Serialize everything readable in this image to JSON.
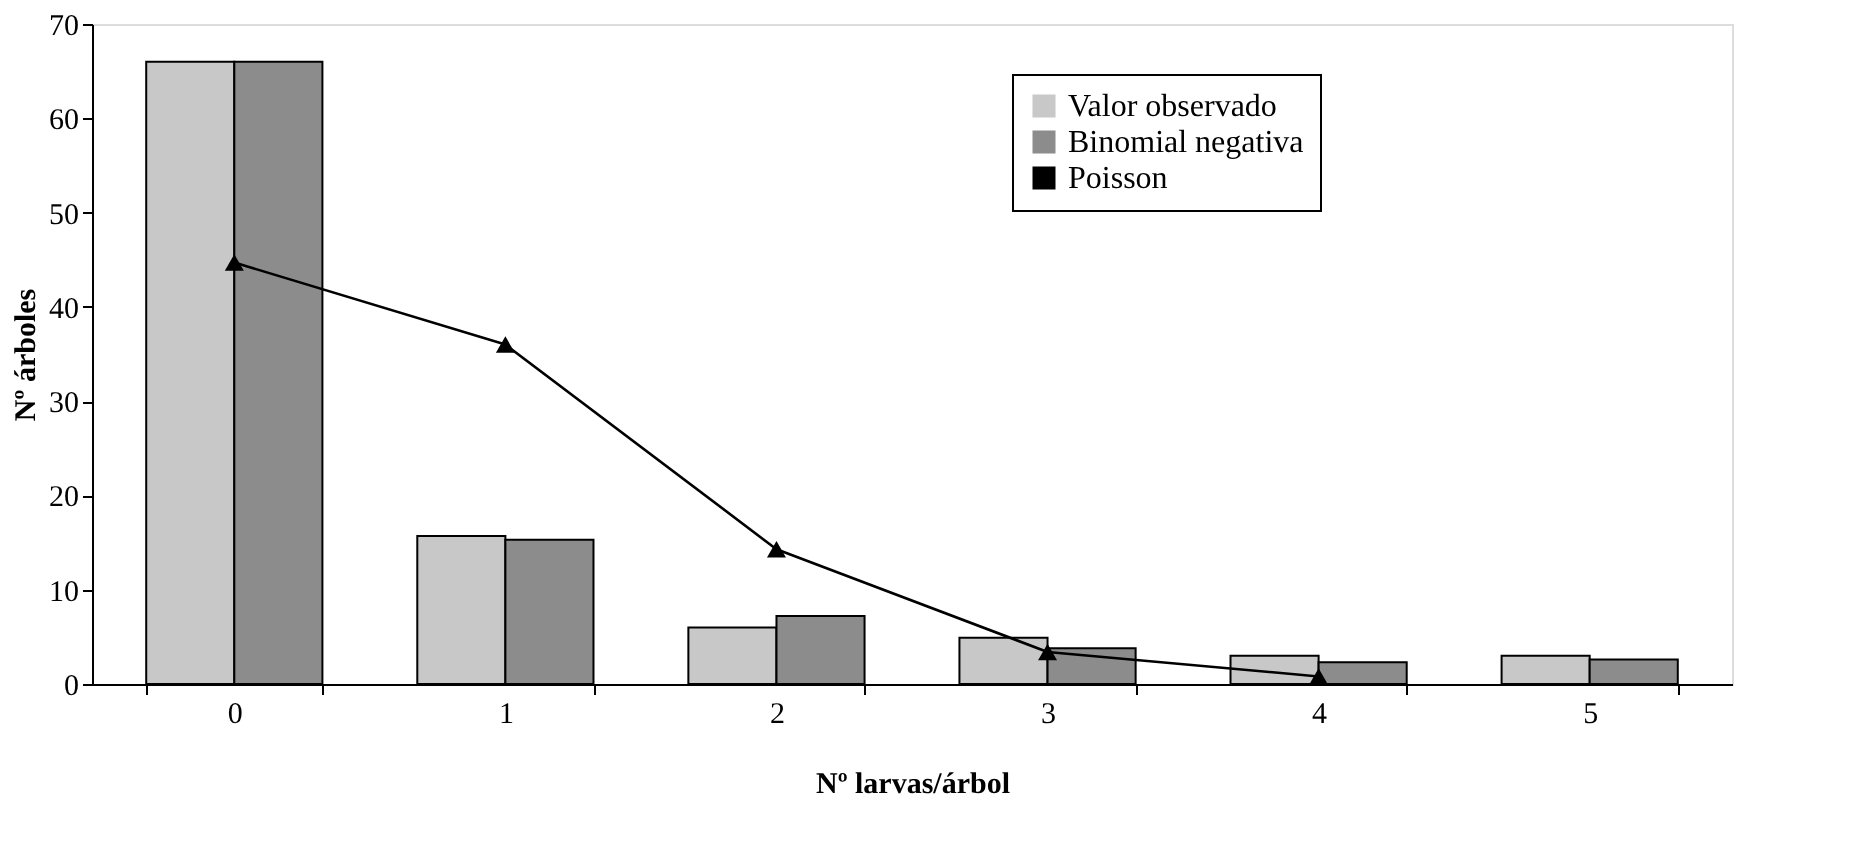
{
  "chart_data": {
    "type": "bar",
    "xlabel": "Nº larvas/árbol",
    "ylabel": "Nº árboles",
    "categories": [
      "0",
      "1",
      "2",
      "3",
      "4",
      "5"
    ],
    "series": [
      {
        "name": "Valor observado",
        "color": "#c8c8c8",
        "values": [
          66,
          15.7,
          6,
          4.9,
          3,
          3
        ]
      },
      {
        "name": "Binomial negativa",
        "color": "#8c8c8c",
        "values": [
          66,
          15.3,
          7.2,
          3.8,
          2.3,
          2.6
        ]
      },
      {
        "name": "Poisson",
        "type": "line",
        "color": "#000000",
        "marker": "triangle",
        "values": [
          44.7,
          36,
          14.3,
          3.4,
          0.8,
          null
        ]
      }
    ],
    "ylim": [
      0,
      70
    ],
    "yticks": [
      0,
      10,
      20,
      30,
      40,
      50,
      60,
      70
    ],
    "grid": false,
    "legend": "top right"
  }
}
